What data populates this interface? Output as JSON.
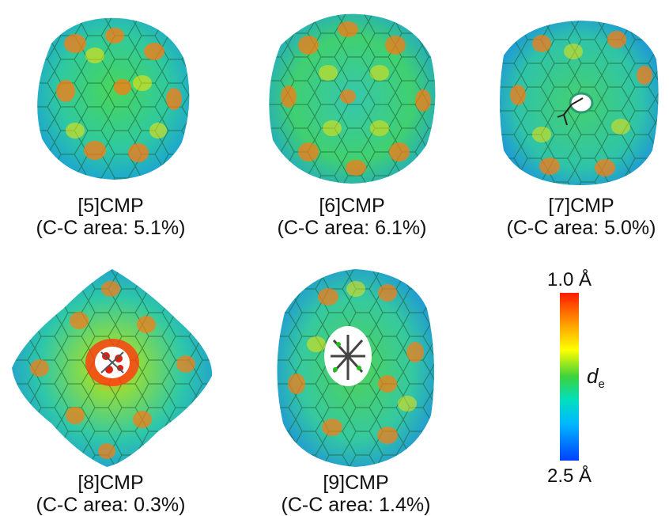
{
  "panels": [
    {
      "label": "[5]CMP",
      "area": "(C-C area: 5.1%)",
      "inner": "none"
    },
    {
      "label": "[6]CMP",
      "area": "(C-C area: 6.1%)",
      "inner": "none"
    },
    {
      "label": "[7]CMP",
      "area": "(C-C area: 5.0%)",
      "inner": "small"
    },
    {
      "label": "[8]CMP",
      "area": "(C-C area: 0.3%)",
      "inner": "red"
    },
    {
      "label": "[9]CMP",
      "area": "(C-C area: 1.4%)",
      "inner": "green"
    }
  ],
  "colorbar": {
    "top": "1.0 Å",
    "bottom": "2.5 Å",
    "symbol": "d",
    "symbol_sub": "e",
    "colors": [
      "#ff1a00",
      "#ff9a00",
      "#ffff00",
      "#3cd23c",
      "#00e0c0",
      "#00b8ff",
      "#0040ff"
    ]
  }
}
